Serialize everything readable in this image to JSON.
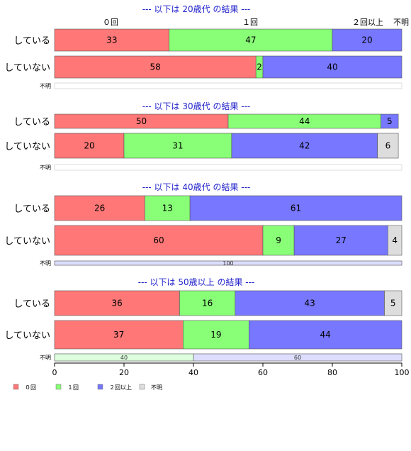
{
  "chart_data": {
    "type": "bar",
    "orientation": "horizontal-stacked-percent",
    "xlim": [
      0,
      100
    ],
    "xticks": [
      0,
      20,
      40,
      60,
      80,
      100
    ],
    "column_headers": [
      "０回",
      "１回",
      "２回以上",
      "不明"
    ],
    "legend": [
      "０回",
      "１回",
      "２回以上",
      "不明"
    ],
    "legend_position": "bottom-left",
    "colors": [
      "#ff7777",
      "#88ff77",
      "#7777ff",
      "#dddddd"
    ],
    "small_colors": [
      "#ffdddd",
      "#ddffdd",
      "#ddddff",
      "#eeeeee"
    ],
    "groups": [
      {
        "title": "--- 以下は 20歳代 の結果 ---",
        "rows": [
          {
            "label": "している",
            "values": [
              33,
              47,
              20,
              0
            ],
            "small": false
          },
          {
            "label": "していない",
            "values": [
              58,
              2,
              40,
              0
            ],
            "small": false
          },
          {
            "label": "不明",
            "values": [
              0,
              0,
              0,
              0
            ],
            "small": true
          }
        ]
      },
      {
        "title": "--- 以下は 30歳代 の結果 ---",
        "rows": [
          {
            "label": "している",
            "values": [
              50,
              44,
              5,
              0
            ],
            "small": false
          },
          {
            "label": "していない",
            "values": [
              20,
              31,
              42,
              6
            ],
            "small": false
          },
          {
            "label": "不明",
            "values": [
              0,
              0,
              0,
              0
            ],
            "small": true
          }
        ]
      },
      {
        "title": "--- 以下は 40歳代 の結果 ---",
        "rows": [
          {
            "label": "している",
            "values": [
              26,
              13,
              61,
              0
            ],
            "small": false
          },
          {
            "label": "していない",
            "values": [
              60,
              9,
              27,
              4
            ],
            "small": false
          },
          {
            "label": "不明",
            "values": [
              0,
              0,
              100,
              0
            ],
            "small": true
          }
        ]
      },
      {
        "title": "--- 以下は 50歳以上 の結果 ---",
        "rows": [
          {
            "label": "している",
            "values": [
              36,
              16,
              43,
              5
            ],
            "small": false
          },
          {
            "label": "していない",
            "values": [
              37,
              19,
              44,
              0
            ],
            "small": false
          },
          {
            "label": "不明",
            "values": [
              0,
              40,
              60,
              0
            ],
            "small": true
          }
        ]
      }
    ]
  }
}
